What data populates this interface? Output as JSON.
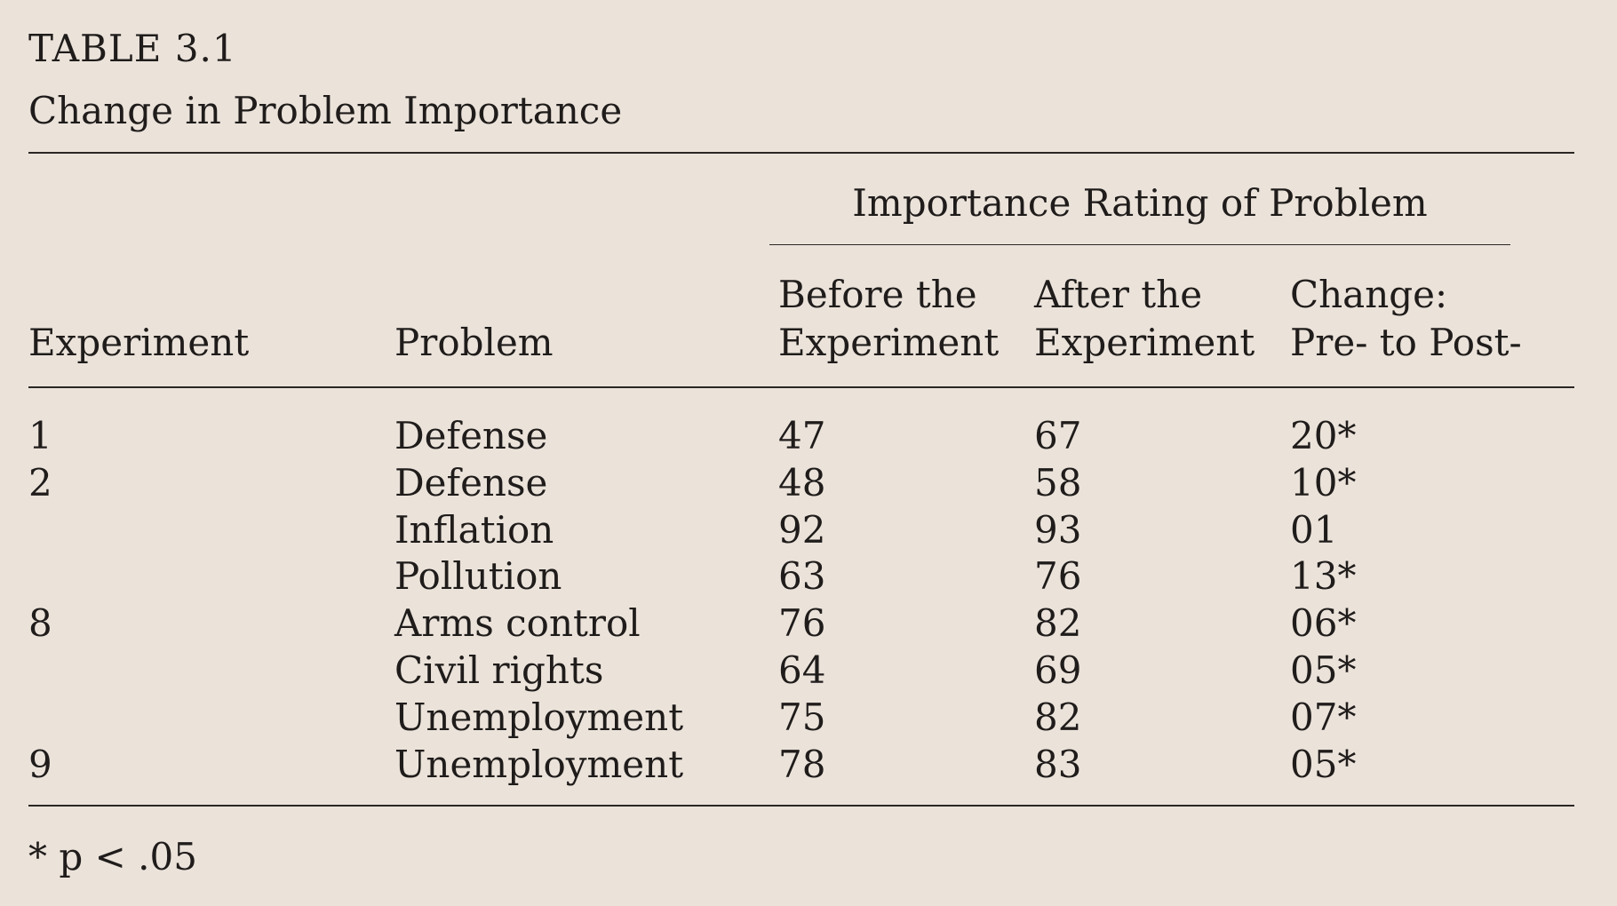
{
  "table": {
    "label": "TABLE 3.1",
    "title": "Change in Problem Importance",
    "group_header": "Importance Rating of Problem",
    "columns": {
      "experiment": "Experiment",
      "problem": "Problem",
      "before": [
        "Before the",
        "Experiment"
      ],
      "after": [
        "After the",
        "Experiment"
      ],
      "change": [
        "Change:",
        "Pre- to Post-"
      ]
    },
    "rows": [
      {
        "experiment": "1",
        "problem": "Defense",
        "before": "47",
        "after": "67",
        "change": "20*"
      },
      {
        "experiment": "2",
        "problem": "Defense",
        "before": "48",
        "after": "58",
        "change": "10*"
      },
      {
        "experiment": "",
        "problem": "Inflation",
        "before": "92",
        "after": "93",
        "change": "01"
      },
      {
        "experiment": "",
        "problem": "Pollution",
        "before": "63",
        "after": "76",
        "change": "13*"
      },
      {
        "experiment": "8",
        "problem": "Arms control",
        "before": "76",
        "after": "82",
        "change": "06*"
      },
      {
        "experiment": "",
        "problem": "Civil rights",
        "before": "64",
        "after": "69",
        "change": "05*"
      },
      {
        "experiment": "",
        "problem": "Unemployment",
        "before": "75",
        "after": "82",
        "change": "07*"
      },
      {
        "experiment": "9",
        "problem": "Unemployment",
        "before": "78",
        "after": "83",
        "change": "05*"
      }
    ],
    "footnote": "* p < .05"
  }
}
